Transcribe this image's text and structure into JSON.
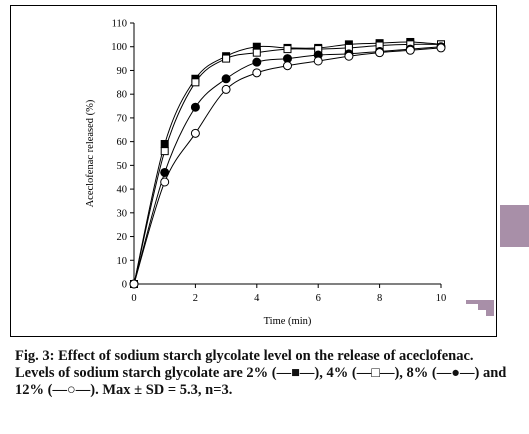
{
  "chart_data": {
    "type": "line",
    "xlabel": "Time (min)",
    "ylabel": "Aceclofenac released (%)",
    "xlim": [
      0,
      10
    ],
    "ylim": [
      0,
      110
    ],
    "xticks": [
      0,
      2,
      4,
      6,
      8,
      10
    ],
    "yticks": [
      0,
      10,
      20,
      30,
      40,
      50,
      60,
      70,
      80,
      90,
      100,
      110
    ],
    "grid": false,
    "legend": "none",
    "series": [
      {
        "marker": "filled-square",
        "color": "#000000",
        "x": [
          0,
          1,
          2,
          3,
          4,
          5,
          6,
          7,
          8,
          9,
          10
        ],
        "y": [
          0,
          59,
          86.5,
          96,
          100,
          99.5,
          99.5,
          101,
          101.5,
          102,
          101
        ]
      },
      {
        "marker": "open-square",
        "color": "#000000",
        "x": [
          0,
          1,
          2,
          3,
          4,
          5,
          6,
          7,
          8,
          9,
          10
        ],
        "y": [
          0,
          56,
          85,
          95,
          97.5,
          99,
          99,
          99.5,
          100.5,
          101,
          101
        ]
      },
      {
        "marker": "filled-circle",
        "color": "#000000",
        "x": [
          0,
          1,
          2,
          3,
          4,
          5,
          6,
          7,
          8,
          9,
          10
        ],
        "y": [
          0,
          47,
          74.5,
          86.5,
          93.5,
          95,
          96.5,
          97,
          98,
          99,
          100
        ]
      },
      {
        "marker": "open-circle",
        "color": "#000000",
        "x": [
          0,
          1,
          2,
          3,
          4,
          5,
          6,
          7,
          8,
          9,
          10
        ],
        "y": [
          0,
          43,
          63.5,
          82,
          89,
          92,
          94,
          96,
          97.5,
          98.5,
          99.5
        ]
      }
    ]
  },
  "caption": {
    "title": "Fig. 3: Effect of sodium starch glycolate level on the release of aceclofenac.",
    "body_parts": [
      "Levels of sodium starch glycolate are 2% (",
      "), 4% (",
      "), 8% (",
      ") and 12% (",
      "). Max ± SD = 5.3, n=3."
    ],
    "glyphs": [
      "—■—",
      "—□—",
      "—●—",
      "—○—"
    ]
  },
  "colors": {
    "side_tab": "#a88fa8",
    "axis": "#000000"
  }
}
